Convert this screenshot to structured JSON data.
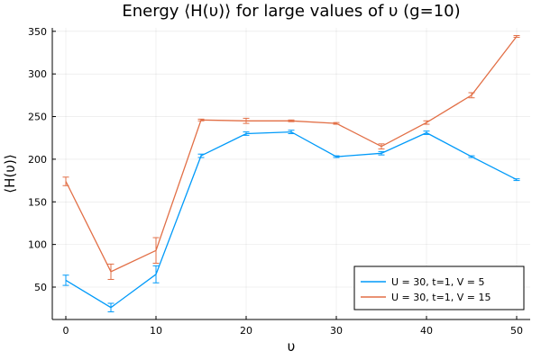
{
  "chart_data": {
    "type": "line",
    "title": "Energy ⟨H(υ)⟩ for large values of υ (g=10)",
    "xlabel": "υ",
    "ylabel": "⟨H(υ)⟩",
    "xlim": [
      -1.5,
      51.5
    ],
    "ylim": [
      12,
      354
    ],
    "xticks": [
      0,
      10,
      20,
      30,
      40,
      50
    ],
    "yticks": [
      50,
      100,
      150,
      200,
      250,
      300,
      350
    ],
    "grid": true,
    "legend_position": "bottom-right",
    "x": [
      0,
      5,
      10,
      15,
      20,
      25,
      30,
      35,
      40,
      45,
      50
    ],
    "series": [
      {
        "name": "U = 30, t=1, V = 5",
        "color": "#009AF9",
        "values": [
          58,
          26,
          65,
          204,
          230,
          232,
          203,
          207,
          231,
          203,
          176
        ],
        "errors": [
          6,
          5,
          10,
          2,
          2,
          2,
          1,
          2,
          2,
          1,
          1
        ]
      },
      {
        "name": "U = 30, t=1, V = 15",
        "color": "#E26F46",
        "values": [
          174,
          68,
          93,
          246,
          245,
          245,
          242,
          215,
          243,
          275,
          344
        ],
        "errors": [
          5,
          9,
          15,
          1,
          3,
          1,
          1,
          3,
          2,
          3,
          1
        ]
      }
    ]
  }
}
